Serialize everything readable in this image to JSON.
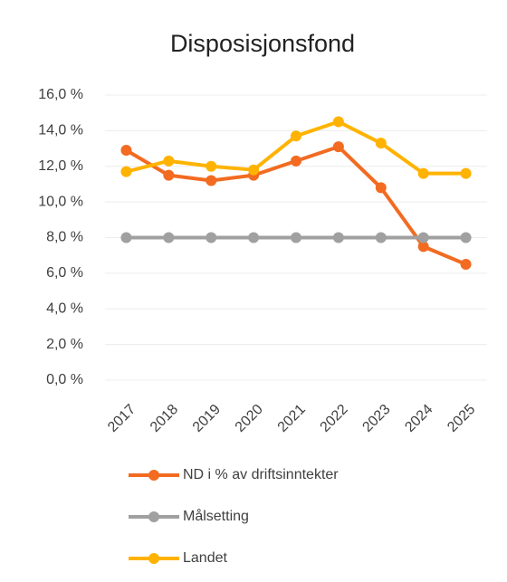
{
  "chart_data": {
    "type": "line",
    "title": "Disposisjonsfond",
    "categories": [
      "2017",
      "2018",
      "2019",
      "2020",
      "2021",
      "2022",
      "2023",
      "2024",
      "2025"
    ],
    "series": [
      {
        "name": "ND i % av driftsinntekter",
        "color": "#f26b21",
        "values": [
          12.9,
          11.5,
          11.2,
          11.5,
          12.3,
          13.1,
          10.8,
          7.5,
          6.5
        ]
      },
      {
        "name": "Målsetting",
        "color": "#a0a0a0",
        "values": [
          8.0,
          8.0,
          8.0,
          8.0,
          8.0,
          8.0,
          8.0,
          8.0,
          8.0
        ]
      },
      {
        "name": "Landet",
        "color": "#ffb300",
        "values": [
          11.7,
          12.3,
          12.0,
          11.8,
          13.7,
          14.5,
          13.3,
          11.6,
          11.6
        ]
      }
    ],
    "ylim": [
      0,
      16
    ],
    "yticks": [
      {
        "value": 0,
        "label": "0,0 %"
      },
      {
        "value": 2,
        "label": "2,0 %"
      },
      {
        "value": 4,
        "label": "4,0 %"
      },
      {
        "value": 6,
        "label": "6,0 %"
      },
      {
        "value": 8,
        "label": "8,0 %"
      },
      {
        "value": 10,
        "label": "10,0 %"
      },
      {
        "value": 12,
        "label": "12,0 %"
      },
      {
        "value": 14,
        "label": "14,0 %"
      },
      {
        "value": 16,
        "label": "16,0 %"
      }
    ],
    "grid": true,
    "legend": "bottom"
  }
}
